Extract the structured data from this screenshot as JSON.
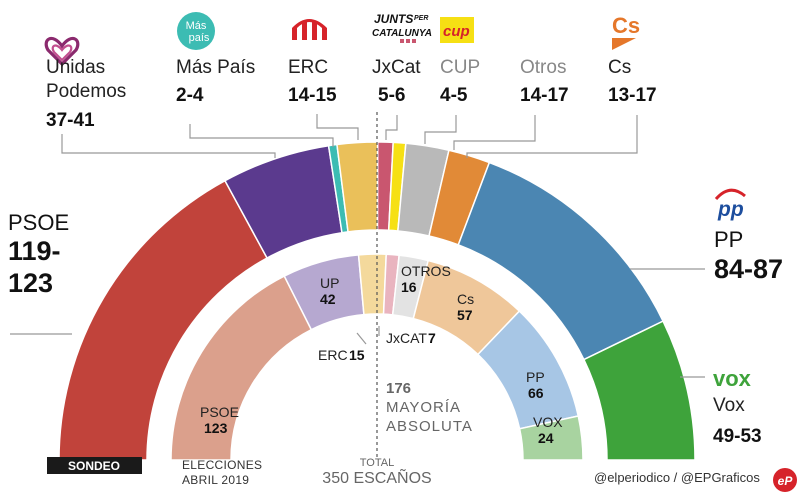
{
  "chart_data": [
    {
      "type": "pie",
      "variant": "semicircle-parliament",
      "title": "Sondeo",
      "tag": "SONDEO",
      "unit": "escaños",
      "series": [
        {
          "name": "PSOE",
          "range": "119-123",
          "low": 119,
          "high": 123,
          "color": "#c1433b"
        },
        {
          "name": "Unidas Podemos",
          "range": "37-41",
          "low": 37,
          "high": 41,
          "color": "#5b3a8e"
        },
        {
          "name": "Más País",
          "range": "2-4",
          "low": 2,
          "high": 4,
          "color": "#3cbcb3"
        },
        {
          "name": "ERC",
          "range": "14-15",
          "low": 14,
          "high": 15,
          "color": "#eac05a"
        },
        {
          "name": "JxCat",
          "range": "5-6",
          "low": 5,
          "high": 6,
          "color": "#c9566f"
        },
        {
          "name": "CUP",
          "range": "4-5",
          "low": 4,
          "high": 5,
          "color": "#f6e014"
        },
        {
          "name": "Otros",
          "range": "14-17",
          "low": 14,
          "high": 17,
          "color": "#b9b9b9"
        },
        {
          "name": "Cs",
          "range": "13-17",
          "low": 13,
          "high": 17,
          "color": "#e18a37"
        },
        {
          "name": "PP",
          "range": "84-87",
          "low": 84,
          "high": 87,
          "color": "#4b86b2"
        },
        {
          "name": "Vox",
          "range": "49-53",
          "low": 49,
          "high": 53,
          "color": "#3ea33b"
        }
      ]
    },
    {
      "type": "pie",
      "variant": "semicircle-parliament",
      "title": "Elecciones abril 2019",
      "caption_line1": "ELECCIONES",
      "caption_line2": "ABRIL 2019",
      "unit": "escaños",
      "series": [
        {
          "name": "PSOE",
          "value": 123,
          "color": "#dba08c"
        },
        {
          "name": "UP",
          "value": 42,
          "color": "#b6a8d0"
        },
        {
          "name": "ERC",
          "value": 15,
          "color": "#f4d99c"
        },
        {
          "name": "JxCAT",
          "value": 7,
          "color": "#e9b4bf"
        },
        {
          "name": "OTROS",
          "value": 16,
          "color": "#e3e3e3"
        },
        {
          "name": "Cs",
          "value": 57,
          "color": "#efc79a"
        },
        {
          "name": "PP",
          "value": 66,
          "color": "#a7c6e5"
        },
        {
          "name": "VOX",
          "value": 24,
          "color": "#a8d3a0"
        }
      ]
    }
  ],
  "labels": {
    "psoe": {
      "name": "PSOE",
      "range_line1": "119-",
      "range_line2": "123"
    },
    "up": {
      "name_line1": "Unidas",
      "name_line2": "Podemos",
      "range": "37-41"
    },
    "maspais": {
      "name": "Más País",
      "range": "2-4",
      "logo_line1": "Más",
      "logo_line2": "país"
    },
    "erc": {
      "name": "ERC",
      "range": "14-15"
    },
    "jxcat": {
      "name": "JxCat",
      "range": "5-6",
      "logo_line1": "JUNTS",
      "logo_small": "PER",
      "logo_line2": "CATALUNYA"
    },
    "cup": {
      "name": "CUP",
      "range": "4-5",
      "logo": "cup"
    },
    "otros": {
      "name": "Otros",
      "range": "14-17"
    },
    "cs": {
      "name": "Cs",
      "range": "13-17",
      "logo": "Cs"
    },
    "pp": {
      "name": "PP",
      "range": "84-87",
      "logo": "pp"
    },
    "vox": {
      "name": "Vox",
      "range": "49-53",
      "logo": "vox"
    }
  },
  "total": {
    "label": "TOTAL",
    "value": "350 ESCAÑOS"
  },
  "majority": {
    "value": "176",
    "line1": "MAYORÍA",
    "line2": "ABSOLUTA"
  },
  "credit": "@elperiodico / @EPGraficos",
  "brand_logo": "eP",
  "colors": {
    "accent_dark": "#1a1a1a",
    "separator": "#555555",
    "leader": "#999999"
  }
}
